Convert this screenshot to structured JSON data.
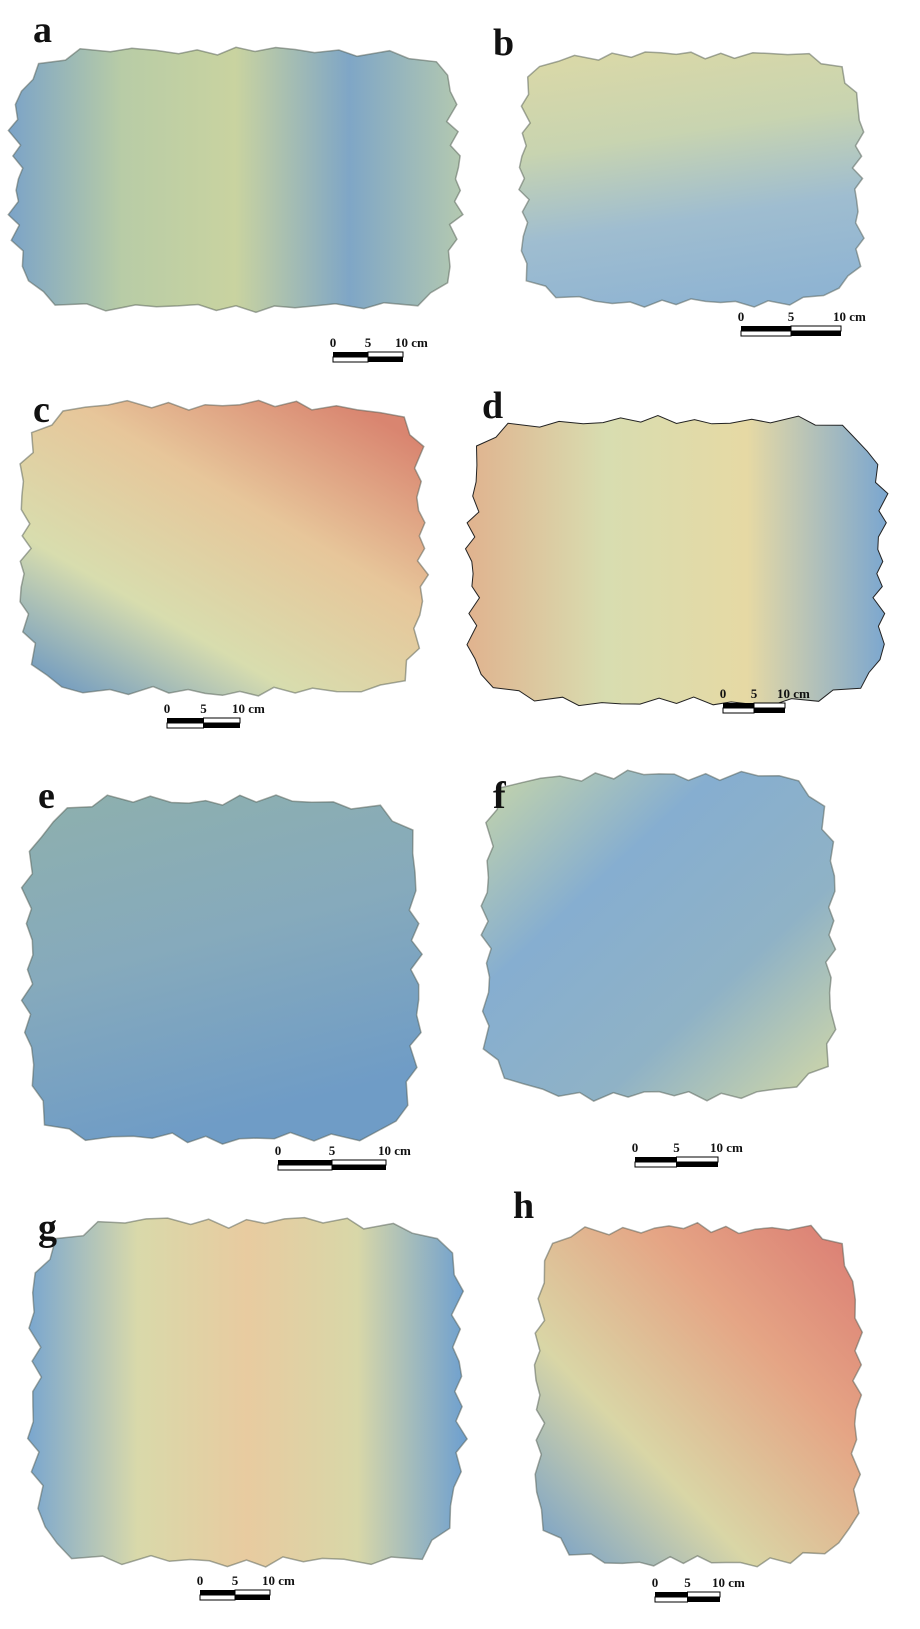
{
  "panels": [
    {
      "label": "a",
      "scale": [
        "0",
        "5",
        "10 cm"
      ]
    },
    {
      "label": "b",
      "scale": [
        "0",
        "5",
        "10 cm"
      ]
    },
    {
      "label": "c",
      "scale": [
        "0",
        "5",
        "10 cm"
      ]
    },
    {
      "label": "d",
      "scale": [
        "0",
        "5",
        "10 cm"
      ]
    },
    {
      "label": "e",
      "scale": [
        "0",
        "5",
        "10 cm"
      ]
    },
    {
      "label": "f",
      "scale": [
        "0",
        "5",
        "10 cm"
      ]
    },
    {
      "label": "g",
      "scale": [
        "0",
        "5",
        "10 cm"
      ]
    },
    {
      "label": "h",
      "scale": [
        "0",
        "5",
        "10 cm"
      ]
    }
  ]
}
